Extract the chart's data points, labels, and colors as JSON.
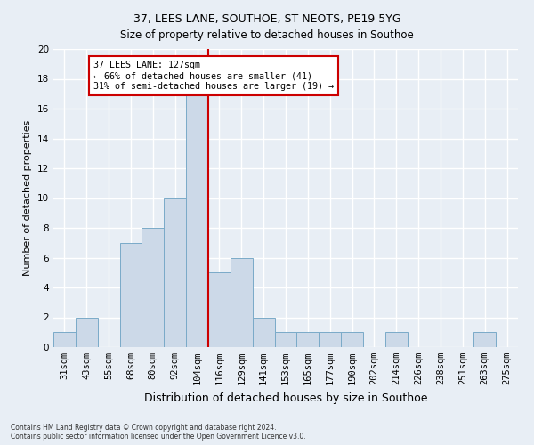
{
  "title": "37, LEES LANE, SOUTHOE, ST NEOTS, PE19 5YG",
  "subtitle": "Size of property relative to detached houses in Southoe",
  "xlabel": "Distribution of detached houses by size in Southoe",
  "ylabel": "Number of detached properties",
  "categories": [
    "31sqm",
    "43sqm",
    "55sqm",
    "68sqm",
    "80sqm",
    "92sqm",
    "104sqm",
    "116sqm",
    "129sqm",
    "141sqm",
    "153sqm",
    "165sqm",
    "177sqm",
    "190sqm",
    "202sqm",
    "214sqm",
    "226sqm",
    "238sqm",
    "251sqm",
    "263sqm",
    "275sqm"
  ],
  "values": [
    1,
    2,
    0,
    7,
    8,
    10,
    17,
    5,
    6,
    2,
    1,
    1,
    1,
    1,
    0,
    1,
    0,
    0,
    0,
    1,
    0
  ],
  "bar_color": "#ccd9e8",
  "bar_edge_color": "#7aaac8",
  "vline_index": 6.5,
  "vline_color": "#cc0000",
  "ylim": [
    0,
    20
  ],
  "yticks": [
    0,
    2,
    4,
    6,
    8,
    10,
    12,
    14,
    16,
    18,
    20
  ],
  "annotation_text": "37 LEES LANE: 127sqm\n← 66% of detached houses are smaller (41)\n31% of semi-detached houses are larger (19) →",
  "annotation_box_facecolor": "#ffffff",
  "annotation_box_edgecolor": "#cc0000",
  "bg_color": "#e8eef5",
  "grid_color": "#ffffff",
  "title_fontsize": 9,
  "subtitle_fontsize": 8.5,
  "ylabel_fontsize": 8,
  "xlabel_fontsize": 9,
  "tick_fontsize": 7.5,
  "footer_line1": "Contains HM Land Registry data © Crown copyright and database right 2024.",
  "footer_line2": "Contains public sector information licensed under the Open Government Licence v3.0."
}
